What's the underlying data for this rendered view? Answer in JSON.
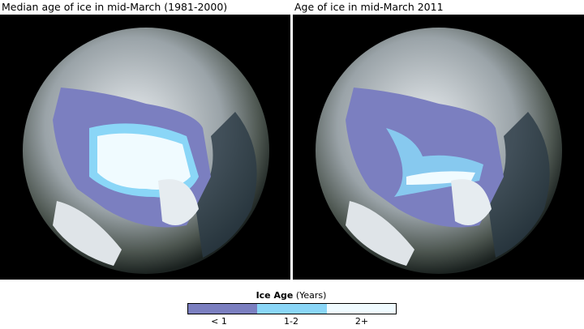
{
  "panels": [
    {
      "title": "Median age of ice in mid-March (1981-2000)"
    },
    {
      "title": "Age of ice in mid-March 2011"
    }
  ],
  "legend": {
    "title": "Ice Age",
    "units": "(Years)",
    "classes": [
      {
        "label": "< 1",
        "color": "#7b7fc0"
      },
      {
        "label": "1-2",
        "color": "#8ad6f7"
      },
      {
        "label": "2+",
        "color": "#f0fbff"
      }
    ]
  }
}
